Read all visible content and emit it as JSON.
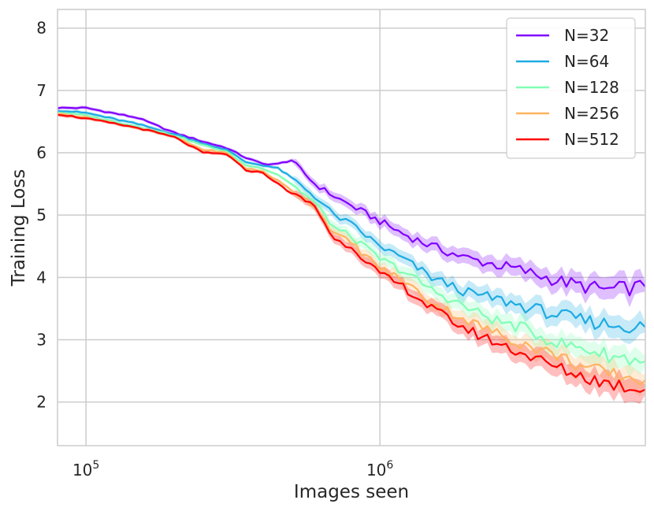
{
  "chart_data": {
    "type": "line",
    "xscale": "log",
    "xlabel": "Images seen",
    "ylabel": "Training Loss",
    "xlim": [
      80000,
      8000000
    ],
    "ylim": [
      1.3,
      8.3
    ],
    "x_ticks": [
      {
        "value": 100000,
        "base": "10",
        "exp": "5"
      },
      {
        "value": 1000000,
        "base": "10",
        "exp": "6"
      }
    ],
    "y_ticks": [
      "2",
      "3",
      "4",
      "5",
      "6",
      "7",
      "8"
    ],
    "grid": true,
    "legend_position": "top-right",
    "series": [
      {
        "name": "N=32",
        "color": "#8000ff",
        "x": [
          80000,
          100000,
          150000,
          200000,
          250000,
          300000,
          350000,
          400000,
          450000,
          500000,
          600000,
          700000,
          800000,
          1000000,
          1200000,
          1500000,
          2000000,
          2500000,
          3000000,
          4000000,
          5000000,
          6000000,
          8000000
        ],
        "y": [
          6.72,
          6.72,
          6.56,
          6.32,
          6.18,
          6.08,
          5.92,
          5.82,
          5.82,
          5.88,
          5.5,
          5.3,
          5.15,
          4.9,
          4.7,
          4.5,
          4.3,
          4.2,
          4.12,
          3.95,
          3.85,
          3.8,
          3.85
        ]
      },
      {
        "name": "N=64",
        "color": "#1cabe2",
        "x": [
          80000,
          100000,
          150000,
          200000,
          250000,
          300000,
          350000,
          400000,
          450000,
          500000,
          600000,
          700000,
          800000,
          1000000,
          1200000,
          1500000,
          2000000,
          2500000,
          3000000,
          4000000,
          5000000,
          6000000,
          8000000
        ],
        "y": [
          6.68,
          6.64,
          6.46,
          6.3,
          6.15,
          6.05,
          5.85,
          5.8,
          5.75,
          5.6,
          5.3,
          5.0,
          4.85,
          4.5,
          4.3,
          4.0,
          3.75,
          3.65,
          3.55,
          3.4,
          3.3,
          3.25,
          3.2
        ]
      },
      {
        "name": "N=128",
        "color": "#80ffb4",
        "x": [
          80000,
          100000,
          150000,
          200000,
          250000,
          300000,
          350000,
          400000,
          450000,
          500000,
          600000,
          700000,
          800000,
          1000000,
          1200000,
          1500000,
          2000000,
          2500000,
          3000000,
          4000000,
          5000000,
          6000000,
          8000000
        ],
        "y": [
          6.65,
          6.6,
          6.42,
          6.28,
          6.12,
          6.02,
          5.8,
          5.75,
          5.65,
          5.5,
          5.2,
          4.8,
          4.65,
          4.3,
          4.1,
          3.8,
          3.5,
          3.3,
          3.2,
          2.95,
          2.85,
          2.75,
          2.65
        ]
      },
      {
        "name": "N=256",
        "color": "#ffb360",
        "x": [
          80000,
          100000,
          150000,
          200000,
          250000,
          300000,
          350000,
          400000,
          450000,
          500000,
          600000,
          700000,
          800000,
          1000000,
          1200000,
          1500000,
          2000000,
          2500000,
          3000000,
          4000000,
          5000000,
          6000000,
          8000000
        ],
        "y": [
          6.63,
          6.57,
          6.4,
          6.25,
          6.05,
          6.0,
          5.75,
          5.7,
          5.55,
          5.4,
          5.15,
          4.7,
          4.55,
          4.15,
          3.95,
          3.6,
          3.3,
          3.1,
          2.95,
          2.75,
          2.55,
          2.45,
          2.35
        ]
      },
      {
        "name": "N=512",
        "color": "#ff0000",
        "x": [
          80000,
          100000,
          150000,
          200000,
          250000,
          300000,
          350000,
          400000,
          450000,
          500000,
          600000,
          700000,
          800000,
          1000000,
          1200000,
          1500000,
          2000000,
          2500000,
          3000000,
          4000000,
          5000000,
          6000000,
          8000000
        ],
        "y": [
          6.62,
          6.55,
          6.4,
          6.25,
          6.0,
          5.98,
          5.72,
          5.68,
          5.5,
          5.35,
          5.15,
          4.6,
          4.5,
          4.05,
          3.85,
          3.5,
          3.15,
          2.95,
          2.8,
          2.55,
          2.4,
          2.3,
          2.2
        ]
      }
    ]
  }
}
